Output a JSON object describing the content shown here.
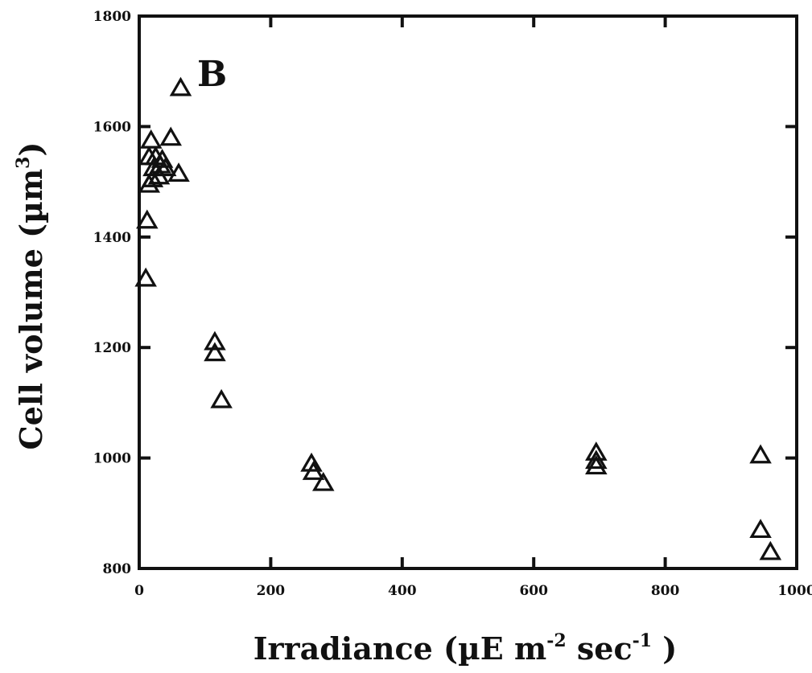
{
  "chart_data": {
    "type": "scatter",
    "title": "",
    "panel_label": "B",
    "xlabel": {
      "main": "Irradiance (µE m",
      "sup1": "-2",
      "middle": " sec",
      "sup2": "-1",
      "end": " )"
    },
    "ylabel": {
      "main": "Cell volume (µm",
      "sup": "3",
      "end": ")"
    },
    "xlim": [
      0,
      1000
    ],
    "ylim": [
      800,
      1800
    ],
    "xticks": [
      0,
      200,
      400,
      600,
      800,
      1000
    ],
    "yticks": [
      800,
      1000,
      1200,
      1400,
      1600,
      1800
    ],
    "grid": false,
    "marker": "open-triangle",
    "points": [
      {
        "x": 10,
        "y": 1325
      },
      {
        "x": 12,
        "y": 1430
      },
      {
        "x": 15,
        "y": 1495
      },
      {
        "x": 15,
        "y": 1545
      },
      {
        "x": 18,
        "y": 1575
      },
      {
        "x": 20,
        "y": 1505
      },
      {
        "x": 22,
        "y": 1525
      },
      {
        "x": 25,
        "y": 1545
      },
      {
        "x": 30,
        "y": 1510
      },
      {
        "x": 32,
        "y": 1530
      },
      {
        "x": 35,
        "y": 1540
      },
      {
        "x": 40,
        "y": 1525
      },
      {
        "x": 48,
        "y": 1580
      },
      {
        "x": 60,
        "y": 1515
      },
      {
        "x": 63,
        "y": 1670
      },
      {
        "x": 115,
        "y": 1210
      },
      {
        "x": 115,
        "y": 1190
      },
      {
        "x": 125,
        "y": 1105
      },
      {
        "x": 262,
        "y": 990
      },
      {
        "x": 265,
        "y": 975
      },
      {
        "x": 280,
        "y": 955
      },
      {
        "x": 695,
        "y": 1010
      },
      {
        "x": 695,
        "y": 995
      },
      {
        "x": 695,
        "y": 985
      },
      {
        "x": 945,
        "y": 1005
      },
      {
        "x": 945,
        "y": 870
      },
      {
        "x": 960,
        "y": 830
      }
    ]
  }
}
